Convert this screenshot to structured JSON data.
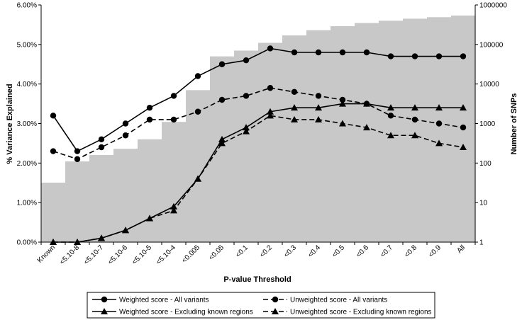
{
  "chart_data": {
    "type": "line",
    "title": "",
    "xlabel": "P-value Threshold",
    "ylabel": "% Variance Explained",
    "y2label": "Number of SNPs",
    "categories": [
      "Known",
      "<5.10-8",
      "<5.10-7",
      "<5.10-6",
      "<5.10-5",
      "<5.10-4",
      "<0.005",
      "<0.05",
      "<0.1",
      "<0.2",
      "<0.3",
      "<0.4",
      "<0.5",
      "<0.6",
      "<0.7",
      "<0.8",
      "<0.9",
      "All"
    ],
    "ylim": [
      0,
      6
    ],
    "yticks": [
      "0.00%",
      "1.00%",
      "2.00%",
      "3.00%",
      "4.00%",
      "5.00%",
      "6.00%"
    ],
    "y2lim": [
      1,
      1000000
    ],
    "y2scale": "log",
    "y2ticks": [
      "1",
      "10",
      "100",
      "1000",
      "10000",
      "100000",
      "1000000"
    ],
    "bars": {
      "name": "Number of SNPs",
      "color": "#c8c8c8",
      "values": [
        32,
        110,
        160,
        230,
        400,
        1100,
        7000,
        50000,
        70000,
        110000,
        170000,
        230000,
        290000,
        350000,
        400000,
        450000,
        490000,
        540000
      ]
    },
    "series": [
      {
        "name": "Weighted score - All variants",
        "marker": "circle",
        "dash": "solid",
        "values": [
          3.2,
          2.3,
          2.6,
          3.0,
          3.4,
          3.7,
          4.2,
          4.5,
          4.6,
          4.9,
          4.8,
          4.8,
          4.8,
          4.8,
          4.7,
          4.7,
          4.7,
          4.7
        ]
      },
      {
        "name": "Unweighted score - All variants",
        "marker": "circle",
        "dash": "dashed",
        "values": [
          2.3,
          2.1,
          2.4,
          2.7,
          3.1,
          3.1,
          3.3,
          3.6,
          3.7,
          3.9,
          3.8,
          3.7,
          3.6,
          3.5,
          3.2,
          3.1,
          3.0,
          2.9
        ]
      },
      {
        "name": "Weighted score - Excluding known regions",
        "marker": "triangle",
        "dash": "solid",
        "values": [
          0.0,
          0.0,
          0.1,
          0.3,
          0.6,
          0.9,
          1.6,
          2.6,
          2.9,
          3.3,
          3.4,
          3.4,
          3.5,
          3.5,
          3.4,
          3.4,
          3.4,
          3.4
        ]
      },
      {
        "name": "Unweighted score - Excluding known regions",
        "marker": "triangle",
        "dash": "dashed",
        "values": [
          0.0,
          0.0,
          0.1,
          0.3,
          0.6,
          0.8,
          1.6,
          2.5,
          2.8,
          3.2,
          3.1,
          3.1,
          3.0,
          2.9,
          2.7,
          2.7,
          2.5,
          2.4
        ]
      }
    ],
    "legend": "bottom",
    "grid": false,
    "line_color": "#000000"
  }
}
